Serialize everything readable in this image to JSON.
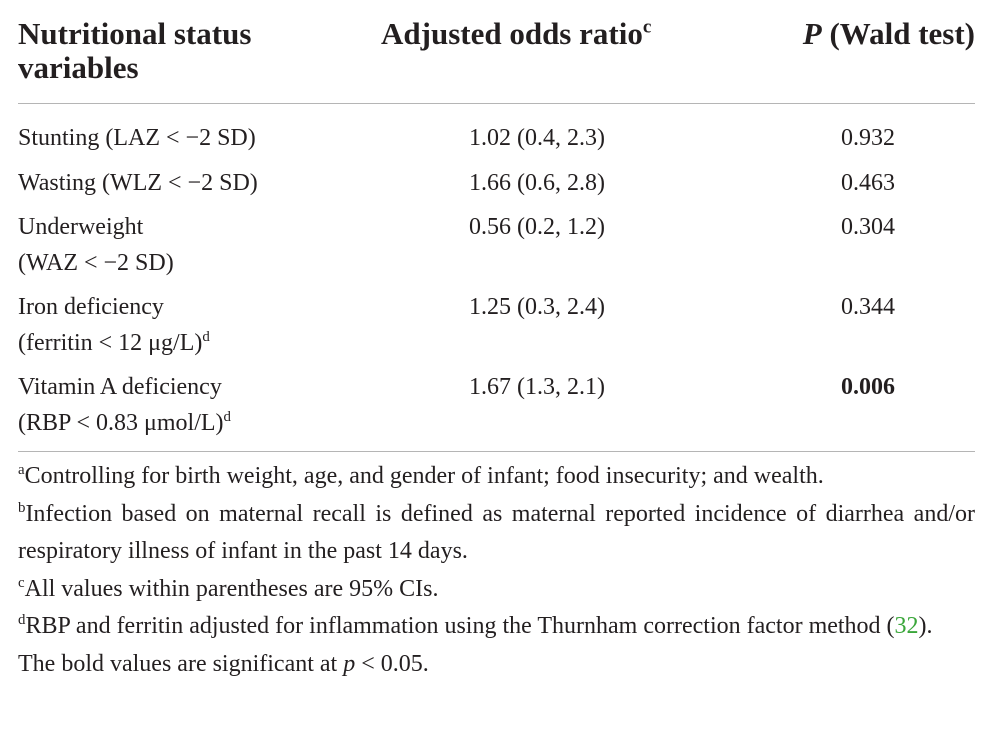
{
  "table": {
    "headers": {
      "col1": "Nutritional status variables",
      "col2": "Adjusted odds ratio",
      "col2_sup": "c",
      "col3_italic": "P",
      "col3_rest": " (Wald test)"
    },
    "rows": [
      {
        "line1": "Stunting (LAZ < −2 SD)",
        "line2": "",
        "sup": "",
        "or": "1.02 (0.4, 2.3)",
        "p": "0.932",
        "bold": false
      },
      {
        "line1": "Wasting (WLZ < −2 SD)",
        "line2": "",
        "sup": "",
        "or": "1.66 (0.6, 2.8)",
        "p": "0.463",
        "bold": false
      },
      {
        "line1": "Underweight",
        "line2": "(WAZ < −2 SD)",
        "sup": "",
        "or": "0.56 (0.2, 1.2)",
        "p": "0.304",
        "bold": false
      },
      {
        "line1": "Iron deficiency",
        "line2": "(ferritin < 12 μg/L)",
        "sup": "d",
        "or": "1.25 (0.3, 2.4)",
        "p": "0.344",
        "bold": false
      },
      {
        "line1": "Vitamin A deficiency",
        "line2": "(RBP < 0.83 μmol/L)",
        "sup": "d",
        "or": "1.67 (1.3, 2.1)",
        "p": "0.006",
        "bold": true
      }
    ]
  },
  "footnotes": {
    "a_mark": "a",
    "a_text": "Controlling for birth weight, age, and gender of infant; food insecurity; and wealth.",
    "b_mark": "b",
    "b_text": "Infection based on maternal recall is defined as maternal reported incidence of diarrhea and/or respiratory illness of infant in the past 14 days.",
    "c_mark": "c",
    "c_text": "All values within parentheses are 95% CIs.",
    "d_mark": "d",
    "d_text": "RBP and ferritin adjusted for inflammation using the Thurnham correction factor method (",
    "d_ref": "32",
    "d_end": ").",
    "bold_note_pre": "The bold values are significant at ",
    "bold_note_var": "p",
    "bold_note_post": " < 0.05."
  }
}
